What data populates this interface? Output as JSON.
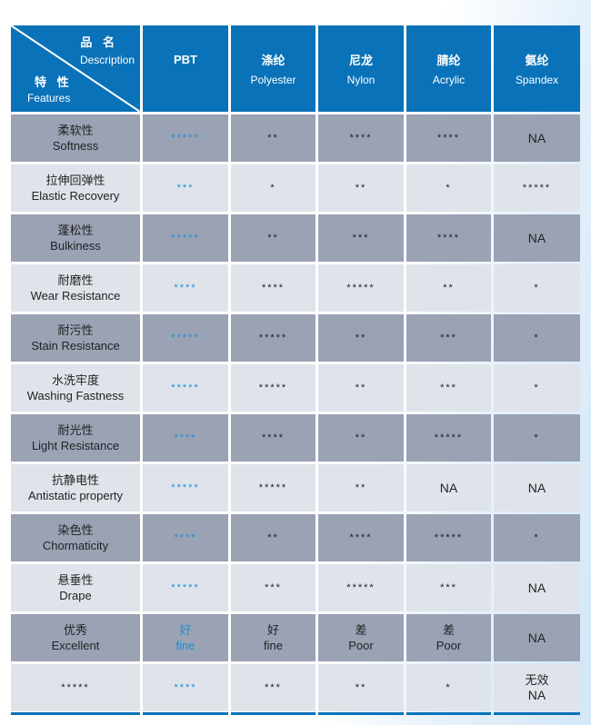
{
  "header": {
    "corner": {
      "top_cn": "品 名",
      "top_en": "Description",
      "bottom_cn": "特 性",
      "bottom_en": "Features"
    },
    "columns": [
      {
        "cn": "",
        "en": "PBT"
      },
      {
        "cn": "涤纶",
        "en": "Polyester"
      },
      {
        "cn": "尼龙",
        "en": "Nylon"
      },
      {
        "cn": "腈纶",
        "en": "Acrylic"
      },
      {
        "cn": "氨纶",
        "en": "Spandex"
      }
    ]
  },
  "colors": {
    "header": "#0a72b8",
    "dark_row": "#9aa2b4",
    "light_row": "#dfe4eb",
    "pbt_text": "#1f8ed3"
  },
  "rows": [
    {
      "cn": "柔软性",
      "en": "Softness",
      "values": [
        "*****",
        "**",
        "****",
        "****",
        "NA"
      ]
    },
    {
      "cn": "拉伸回弹性",
      "en": "Elastic Recovery",
      "values": [
        "***",
        "*",
        "**",
        "*",
        "*****"
      ]
    },
    {
      "cn": "蓬松性",
      "en": "Bulkiness",
      "values": [
        "*****",
        "**",
        "***",
        "****",
        "NA"
      ]
    },
    {
      "cn": "耐磨性",
      "en": "Wear Resistance",
      "values": [
        "****",
        "****",
        "*****",
        "**",
        "*"
      ]
    },
    {
      "cn": "耐污性",
      "en": "Stain Resistance",
      "values": [
        "*****",
        "*****",
        "**",
        "***",
        "*"
      ]
    },
    {
      "cn": "水洗牢度",
      "en": "Washing Fastness",
      "values": [
        "*****",
        "*****",
        "**",
        "***",
        "*"
      ]
    },
    {
      "cn": "耐光性",
      "en": "Light Resistance",
      "values": [
        "****",
        "****",
        "**",
        "*****",
        "*"
      ]
    },
    {
      "cn": "抗静电性",
      "en": "Antistatic property",
      "values": [
        "*****",
        "*****",
        "**",
        "NA",
        "NA"
      ]
    },
    {
      "cn": "染色性",
      "en": "Chormaticity",
      "values": [
        "****",
        "**",
        "****",
        "*****",
        "*"
      ]
    },
    {
      "cn": "悬垂性",
      "en": "Drape",
      "values": [
        "*****",
        "***",
        "*****",
        "***",
        "NA"
      ]
    },
    {
      "cn": "优秀",
      "en": "Excellent",
      "values": [
        "好\nfine",
        "好\nfine",
        "差\nPoor",
        "差\nPoor",
        "NA"
      ]
    },
    {
      "cn": "",
      "en": "*****",
      "values": [
        "****",
        "***",
        "**",
        "*",
        "无效\nNA"
      ]
    }
  ]
}
